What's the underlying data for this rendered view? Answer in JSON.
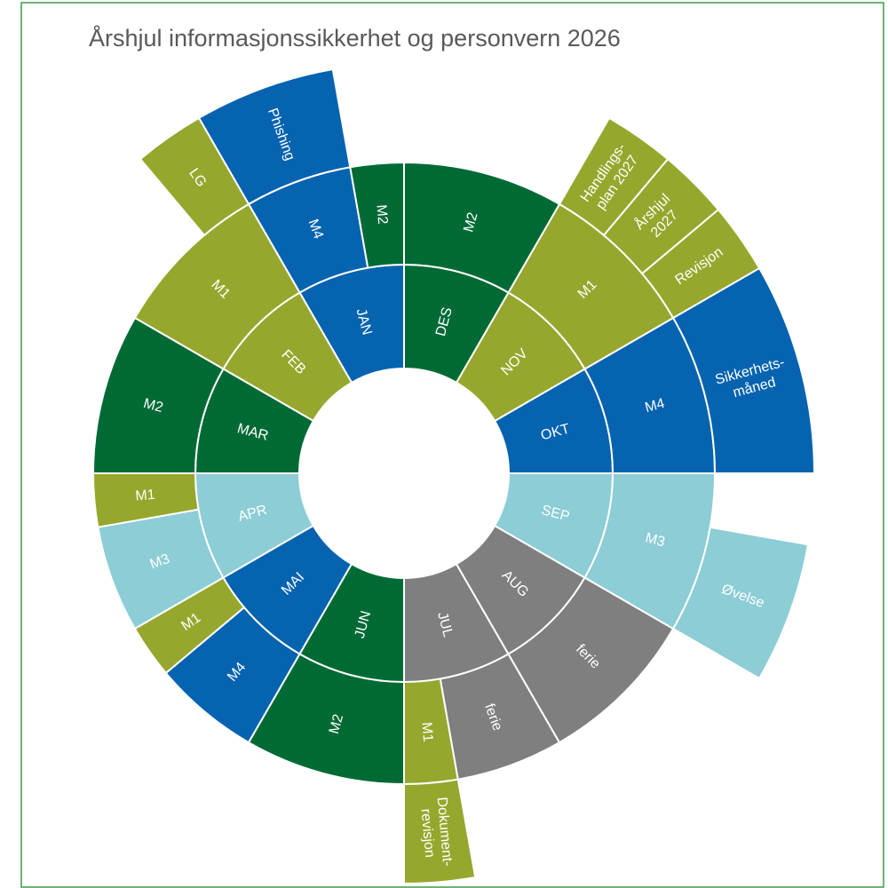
{
  "chart_data": {
    "type": "sunburst",
    "title": "Årshjul informasjonssikkerhet og personvern 2026",
    "nodes": [
      {
        "name": "JAN",
        "color": "#0563b0",
        "value": 3,
        "children": [
          {
            "name": "M2",
            "color": "#006a35",
            "value": 1
          },
          {
            "name": "M4",
            "color": "#0563b0",
            "value": 2,
            "children": [
              {
                "name": "Phishing",
                "color": "#0563b0",
                "value": 2
              }
            ]
          }
        ]
      },
      {
        "name": "FEB",
        "color": "#97a72d",
        "value": 3,
        "children": [
          {
            "name": "M1",
            "color": "#97a72d",
            "value": 3,
            "children": [
              {
                "name": "LG",
                "color": "#97a72d",
                "value": 1
              }
            ]
          }
        ]
      },
      {
        "name": "MAR",
        "color": "#006a35",
        "value": 3,
        "children": [
          {
            "name": "M2",
            "color": "#006a35",
            "value": 3
          }
        ]
      },
      {
        "name": "APR",
        "color": "#8ccdd6",
        "value": 3,
        "children": [
          {
            "name": "M1",
            "color": "#97a72d",
            "value": 1
          },
          {
            "name": "M3",
            "color": "#8ccdd6",
            "value": 2
          }
        ]
      },
      {
        "name": "MAI",
        "color": "#0563b0",
        "value": 3,
        "children": [
          {
            "name": "M1",
            "color": "#97a72d",
            "value": 1
          },
          {
            "name": "M4",
            "color": "#0563b0",
            "value": 2
          }
        ]
      },
      {
        "name": "JUN",
        "color": "#006a35",
        "value": 3,
        "children": [
          {
            "name": "M2",
            "color": "#006a35",
            "value": 3
          }
        ]
      },
      {
        "name": "JUL",
        "color": "#7f7f7f",
        "value": 3,
        "children": [
          {
            "name": "M1",
            "color": "#97a72d",
            "value": 1,
            "children": [
              {
                "name": "Dokument-\nrevisjon",
                "color": "#97a72d",
                "value": 1
              }
            ]
          },
          {
            "name": "ferie",
            "color": "#7f7f7f",
            "value": 2
          }
        ]
      },
      {
        "name": "AUG",
        "color": "#7f7f7f",
        "value": 3,
        "children": [
          {
            "name": "ferie",
            "color": "#7f7f7f",
            "value": 3
          }
        ]
      },
      {
        "name": "SEP",
        "color": "#8ccdd6",
        "value": 3,
        "children": [
          {
            "name": "M3",
            "color": "#8ccdd6",
            "value": 3,
            "children": [
              {
                "name": "Øvelse",
                "color": "#8ccdd6",
                "value": 2
              }
            ]
          }
        ]
      },
      {
        "name": "OKT",
        "color": "#0563b0",
        "value": 3,
        "children": [
          {
            "name": "M4",
            "color": "#0563b0",
            "value": 3,
            "children": [
              {
                "name": "Sikkerhets-\nmåned",
                "color": "#0563b0",
                "value": 3
              }
            ]
          }
        ]
      },
      {
        "name": "NOV",
        "color": "#97a72d",
        "value": 3,
        "children": [
          {
            "name": "M1",
            "color": "#97a72d",
            "value": 3,
            "children": [
              {
                "name": "Revisjon",
                "color": "#97a72d",
                "value": 1
              },
              {
                "name": "Årshjul\n2027",
                "color": "#97a72d",
                "value": 1
              },
              {
                "name": "Handlings-\nplan 2027",
                "color": "#97a72d",
                "value": 1
              }
            ]
          }
        ]
      },
      {
        "name": "DES",
        "color": "#006a35",
        "value": 3,
        "children": [
          {
            "name": "M2",
            "color": "#006a35",
            "value": 3
          }
        ]
      }
    ]
  }
}
